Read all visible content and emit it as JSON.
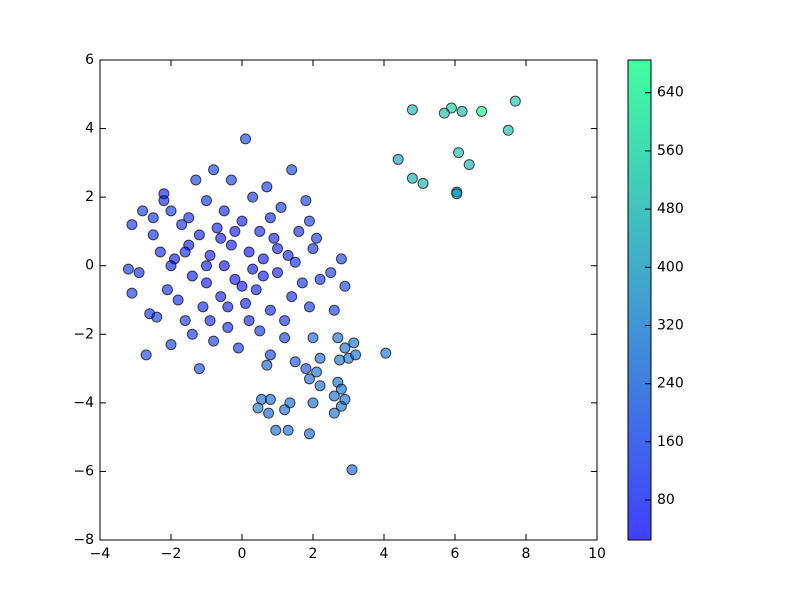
{
  "chart_data": {
    "type": "scatter",
    "xlim": [
      -4,
      10
    ],
    "ylim": [
      -8,
      6
    ],
    "xticks": [
      {
        "value": -4,
        "label": "−4"
      },
      {
        "value": -2,
        "label": "−2"
      },
      0,
      2,
      4,
      6,
      8,
      10
    ],
    "yticks": [
      {
        "value": -8,
        "label": "−8"
      },
      {
        "value": -6,
        "label": "−6"
      },
      {
        "value": -4,
        "label": "−4"
      },
      {
        "value": -2,
        "label": "−2"
      },
      0,
      2,
      4,
      6
    ],
    "colorbar": {
      "lim": [
        25,
        685
      ],
      "ticks": [
        80,
        160,
        240,
        320,
        400,
        480,
        560,
        640
      ],
      "colors": [
        "#0000ff",
        "#00ff80"
      ]
    },
    "x": [
      -3.2,
      -3.1,
      -3.1,
      -2.9,
      -2.8,
      -2.7,
      -2.6,
      -2.5,
      -2.4,
      -2.3,
      -2.2,
      -2.2,
      -2.1,
      -2.0,
      -2.0,
      -1.9,
      -1.8,
      -1.7,
      -1.6,
      -1.5,
      -1.4,
      -1.3,
      -1.2,
      -1.2,
      -1.1,
      -1.0,
      -1.0,
      -0.9,
      -0.8,
      -0.8,
      -0.7,
      -0.6,
      -0.5,
      -0.5,
      -0.4,
      -0.3,
      -0.3,
      -0.2,
      -0.1,
      0.0,
      0.1,
      0.1,
      0.2,
      0.3,
      0.4,
      0.5,
      0.5,
      0.6,
      0.7,
      0.8,
      0.8,
      0.9,
      1.0,
      1.1,
      1.2,
      1.3,
      1.4,
      1.4,
      1.5,
      1.6,
      1.7,
      1.8,
      1.9,
      2.0,
      2.1,
      2.2,
      2.5,
      2.6,
      2.8,
      2.9,
      1.8,
      1.2,
      -1.4,
      -2.5,
      0.3,
      -0.6,
      0.0,
      -1.0,
      1.0,
      -0.2,
      0.6,
      -1.6,
      -0.4,
      0.8,
      1.5,
      -2.0,
      -0.9,
      0.2,
      1.9,
      -1.5,
      2.0,
      2.2,
      2.7,
      2.9,
      3.0,
      3.2,
      4.05,
      2.1,
      2.2,
      2.7,
      2.8,
      1.9,
      0.7,
      0.55,
      0.8,
      0.45,
      1.35,
      1.2,
      2.0,
      2.6,
      2.8,
      2.9,
      0.75,
      0.95,
      1.3,
      1.9,
      2.6,
      3.1,
      3.15,
      2.75,
      4.8,
      5.9,
      5.7,
      6.2,
      6.75,
      7.7,
      7.5,
      4.4,
      6.1,
      6.4,
      4.8,
      5.1,
      6.05,
      6.05
    ],
    "y": [
      -0.1,
      -0.8,
      1.2,
      -0.2,
      1.6,
      -2.6,
      -1.4,
      0.9,
      -1.5,
      0.4,
      2.1,
      1.9,
      -0.7,
      1.6,
      -2.3,
      0.2,
      -1.0,
      1.2,
      -1.6,
      0.6,
      -0.3,
      2.5,
      -3.0,
      0.9,
      -1.2,
      1.9,
      -0.5,
      0.3,
      2.8,
      -2.2,
      1.1,
      -0.9,
      0.0,
      1.6,
      -1.8,
      2.5,
      0.6,
      -0.4,
      -2.4,
      1.3,
      3.7,
      -1.1,
      0.4,
      2.0,
      -0.7,
      1.0,
      -1.9,
      0.2,
      2.3,
      -1.3,
      -2.6,
      0.8,
      -0.2,
      1.7,
      -1.6,
      0.3,
      2.8,
      -0.9,
      -2.8,
      1.0,
      -0.5,
      1.9,
      -1.2,
      0.5,
      0.8,
      -0.4,
      -0.2,
      -1.3,
      0.2,
      -0.6,
      -3.0,
      -2.1,
      -2.0,
      1.4,
      -0.1,
      0.8,
      -0.6,
      0.0,
      0.5,
      1.0,
      -0.3,
      0.4,
      -1.2,
      1.4,
      0.1,
      0.0,
      -1.6,
      -1.6,
      1.3,
      1.4,
      -2.1,
      -2.7,
      -2.1,
      -2.4,
      -2.7,
      -2.6,
      -2.55,
      -3.1,
      -3.5,
      -3.4,
      -3.6,
      -3.3,
      -2.9,
      -3.9,
      -3.9,
      -4.15,
      -4.0,
      -4.2,
      -4.0,
      -3.8,
      -4.1,
      -3.9,
      -4.3,
      -4.8,
      -4.8,
      -4.9,
      -4.3,
      -5.95,
      -2.25,
      -2.75,
      4.55,
      4.6,
      4.45,
      4.5,
      4.5,
      4.8,
      3.95,
      3.1,
      3.3,
      2.95,
      2.55,
      2.4,
      2.15,
      2.1
    ],
    "c": [
      120,
      130,
      110,
      90,
      140,
      170,
      120,
      100,
      150,
      80,
      60,
      70,
      95,
      130,
      160,
      60,
      85,
      110,
      140,
      70,
      50,
      160,
      180,
      75,
      90,
      120,
      40,
      55,
      150,
      140,
      70,
      60,
      30,
      80,
      100,
      150,
      45,
      40,
      130,
      60,
      170,
      70,
      35,
      110,
      55,
      80,
      120,
      40,
      140,
      90,
      160,
      70,
      60,
      130,
      110,
      80,
      170,
      90,
      200,
      100,
      110,
      150,
      120,
      110,
      130,
      120,
      150,
      140,
      160,
      170,
      190,
      150,
      120,
      110,
      30,
      40,
      35,
      45,
      60,
      40,
      45,
      90,
      60,
      90,
      100,
      80,
      90,
      70,
      140,
      95,
      260,
      270,
      280,
      290,
      300,
      280,
      300,
      280,
      290,
      300,
      300,
      270,
      250,
      260,
      270,
      330,
      280,
      270,
      280,
      290,
      300,
      290,
      250,
      260,
      270,
      270,
      290,
      250,
      280,
      300,
      480,
      550,
      500,
      480,
      660,
      520,
      490,
      420,
      480,
      460,
      450,
      470,
      420,
      400
    ]
  }
}
